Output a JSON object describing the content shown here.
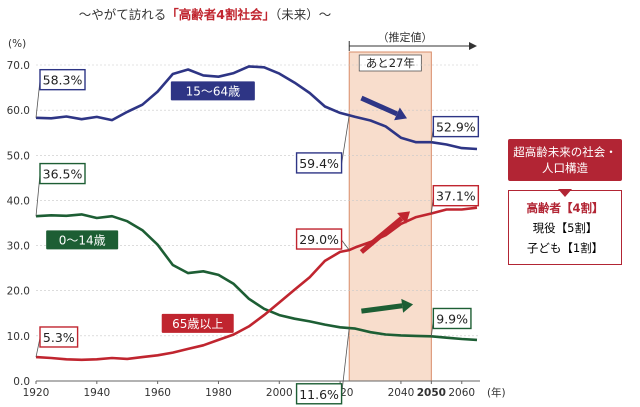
{
  "chart_data": {
    "type": "line",
    "title": "～やがて訪れる「高齢者4割社会」（未来）～",
    "title_parts": {
      "before": "～やがて訪れる",
      "highlight": "「高齢者4割社会」",
      "after": "（未来）～"
    },
    "y_unit": "(%)",
    "x_unit": "(年)",
    "xlim": [
      1920,
      2066
    ],
    "ylim": [
      0,
      70
    ],
    "x_ticks": [
      "1920",
      "1940",
      "1960",
      "1980",
      "2000",
      "2020",
      "2040",
      "2050",
      "2060"
    ],
    "x_tick_values": [
      1920,
      1940,
      1960,
      1980,
      2000,
      2020,
      2040,
      2050,
      2060
    ],
    "y_ticks": [
      "0.0",
      "10.0",
      "20.0",
      "30.0",
      "40.0",
      "50.0",
      "60.0",
      "70.0"
    ],
    "y_tick_values": [
      0,
      10,
      20,
      30,
      40,
      50,
      60,
      70
    ],
    "grid": true,
    "estimate_label": "（推定値）",
    "estimate_start": 2023,
    "shaded_region": {
      "from": 2023,
      "to": 2050,
      "label": "あと27年"
    },
    "series": [
      {
        "name": "15～64歳",
        "color": "#2e3585",
        "points": [
          [
            1920,
            58.3
          ],
          [
            1925,
            58.2
          ],
          [
            1930,
            58.6
          ],
          [
            1935,
            58.0
          ],
          [
            1940,
            58.5
          ],
          [
            1945,
            57.8
          ],
          [
            1950,
            59.6
          ],
          [
            1955,
            61.2
          ],
          [
            1960,
            64.1
          ],
          [
            1965,
            68.0
          ],
          [
            1970,
            69.0
          ],
          [
            1975,
            67.7
          ],
          [
            1980,
            67.4
          ],
          [
            1985,
            68.2
          ],
          [
            1990,
            69.7
          ],
          [
            1995,
            69.5
          ],
          [
            2000,
            68.1
          ],
          [
            2005,
            66.1
          ],
          [
            2010,
            63.8
          ],
          [
            2015,
            60.8
          ],
          [
            2020,
            59.4
          ],
          [
            2025,
            58.5
          ],
          [
            2030,
            57.7
          ],
          [
            2035,
            56.4
          ],
          [
            2040,
            53.9
          ],
          [
            2045,
            52.9
          ],
          [
            2050,
            52.9
          ],
          [
            2055,
            52.4
          ],
          [
            2060,
            51.6
          ],
          [
            2065,
            51.4
          ]
        ]
      },
      {
        "name": "0～14歳",
        "color": "#1d5e34",
        "points": [
          [
            1920,
            36.5
          ],
          [
            1925,
            36.7
          ],
          [
            1930,
            36.6
          ],
          [
            1935,
            36.9
          ],
          [
            1940,
            36.1
          ],
          [
            1945,
            36.5
          ],
          [
            1950,
            35.4
          ],
          [
            1955,
            33.4
          ],
          [
            1960,
            30.2
          ],
          [
            1965,
            25.7
          ],
          [
            1970,
            23.9
          ],
          [
            1975,
            24.3
          ],
          [
            1980,
            23.5
          ],
          [
            1985,
            21.5
          ],
          [
            1990,
            18.2
          ],
          [
            1995,
            16.0
          ],
          [
            2000,
            14.6
          ],
          [
            2005,
            13.8
          ],
          [
            2010,
            13.2
          ],
          [
            2015,
            12.5
          ],
          [
            2020,
            11.9
          ],
          [
            2025,
            11.6
          ],
          [
            2030,
            10.8
          ],
          [
            2035,
            10.3
          ],
          [
            2040,
            10.1
          ],
          [
            2045,
            10.0
          ],
          [
            2050,
            9.9
          ],
          [
            2055,
            9.6
          ],
          [
            2060,
            9.3
          ],
          [
            2065,
            9.1
          ]
        ]
      },
      {
        "name": "65歳以上",
        "color": "#c0252f",
        "points": [
          [
            1920,
            5.3
          ],
          [
            1925,
            5.1
          ],
          [
            1930,
            4.8
          ],
          [
            1935,
            4.7
          ],
          [
            1940,
            4.8
          ],
          [
            1945,
            5.1
          ],
          [
            1950,
            4.9
          ],
          [
            1955,
            5.3
          ],
          [
            1960,
            5.7
          ],
          [
            1965,
            6.3
          ],
          [
            1970,
            7.1
          ],
          [
            1975,
            7.9
          ],
          [
            1980,
            9.1
          ],
          [
            1985,
            10.3
          ],
          [
            1990,
            12.1
          ],
          [
            1995,
            14.6
          ],
          [
            2000,
            17.4
          ],
          [
            2005,
            20.2
          ],
          [
            2010,
            23.0
          ],
          [
            2015,
            26.6
          ],
          [
            2020,
            28.6
          ],
          [
            2023,
            29.0
          ],
          [
            2025,
            29.6
          ],
          [
            2030,
            30.8
          ],
          [
            2035,
            32.3
          ],
          [
            2040,
            34.8
          ],
          [
            2045,
            36.3
          ],
          [
            2050,
            37.1
          ],
          [
            2055,
            38.0
          ],
          [
            2060,
            38.0
          ],
          [
            2065,
            38.4
          ]
        ]
      }
    ],
    "series_labels": [
      {
        "text": "15～64歳",
        "series": 0
      },
      {
        "text": "0～14歳",
        "series": 1
      },
      {
        "text": "65歳以上",
        "series": 2
      }
    ],
    "value_callouts": [
      {
        "text": "58.3%",
        "year": 1920,
        "series": 0
      },
      {
        "text": "59.4%",
        "year": 2023,
        "series": 0
      },
      {
        "text": "52.9%",
        "year": 2050,
        "series": 0
      },
      {
        "text": "36.5%",
        "year": 1920,
        "series": 1
      },
      {
        "text": "11.6%",
        "year": 2023,
        "series": 1
      },
      {
        "text": "9.9%",
        "year": 2050,
        "series": 1
      },
      {
        "text": "5.3%",
        "year": 1920,
        "series": 2
      },
      {
        "text": "29.0%",
        "year": 2023,
        "series": 2
      },
      {
        "text": "37.1%",
        "year": 2050,
        "series": 2
      }
    ]
  },
  "side_panel": {
    "header": "超高齢未来の社会・人口構造",
    "items": [
      {
        "label": "高齢者【4割】",
        "highlight": true
      },
      {
        "label": "現役【5割】",
        "highlight": false
      },
      {
        "label": "子ども【1割】",
        "highlight": false
      }
    ]
  }
}
